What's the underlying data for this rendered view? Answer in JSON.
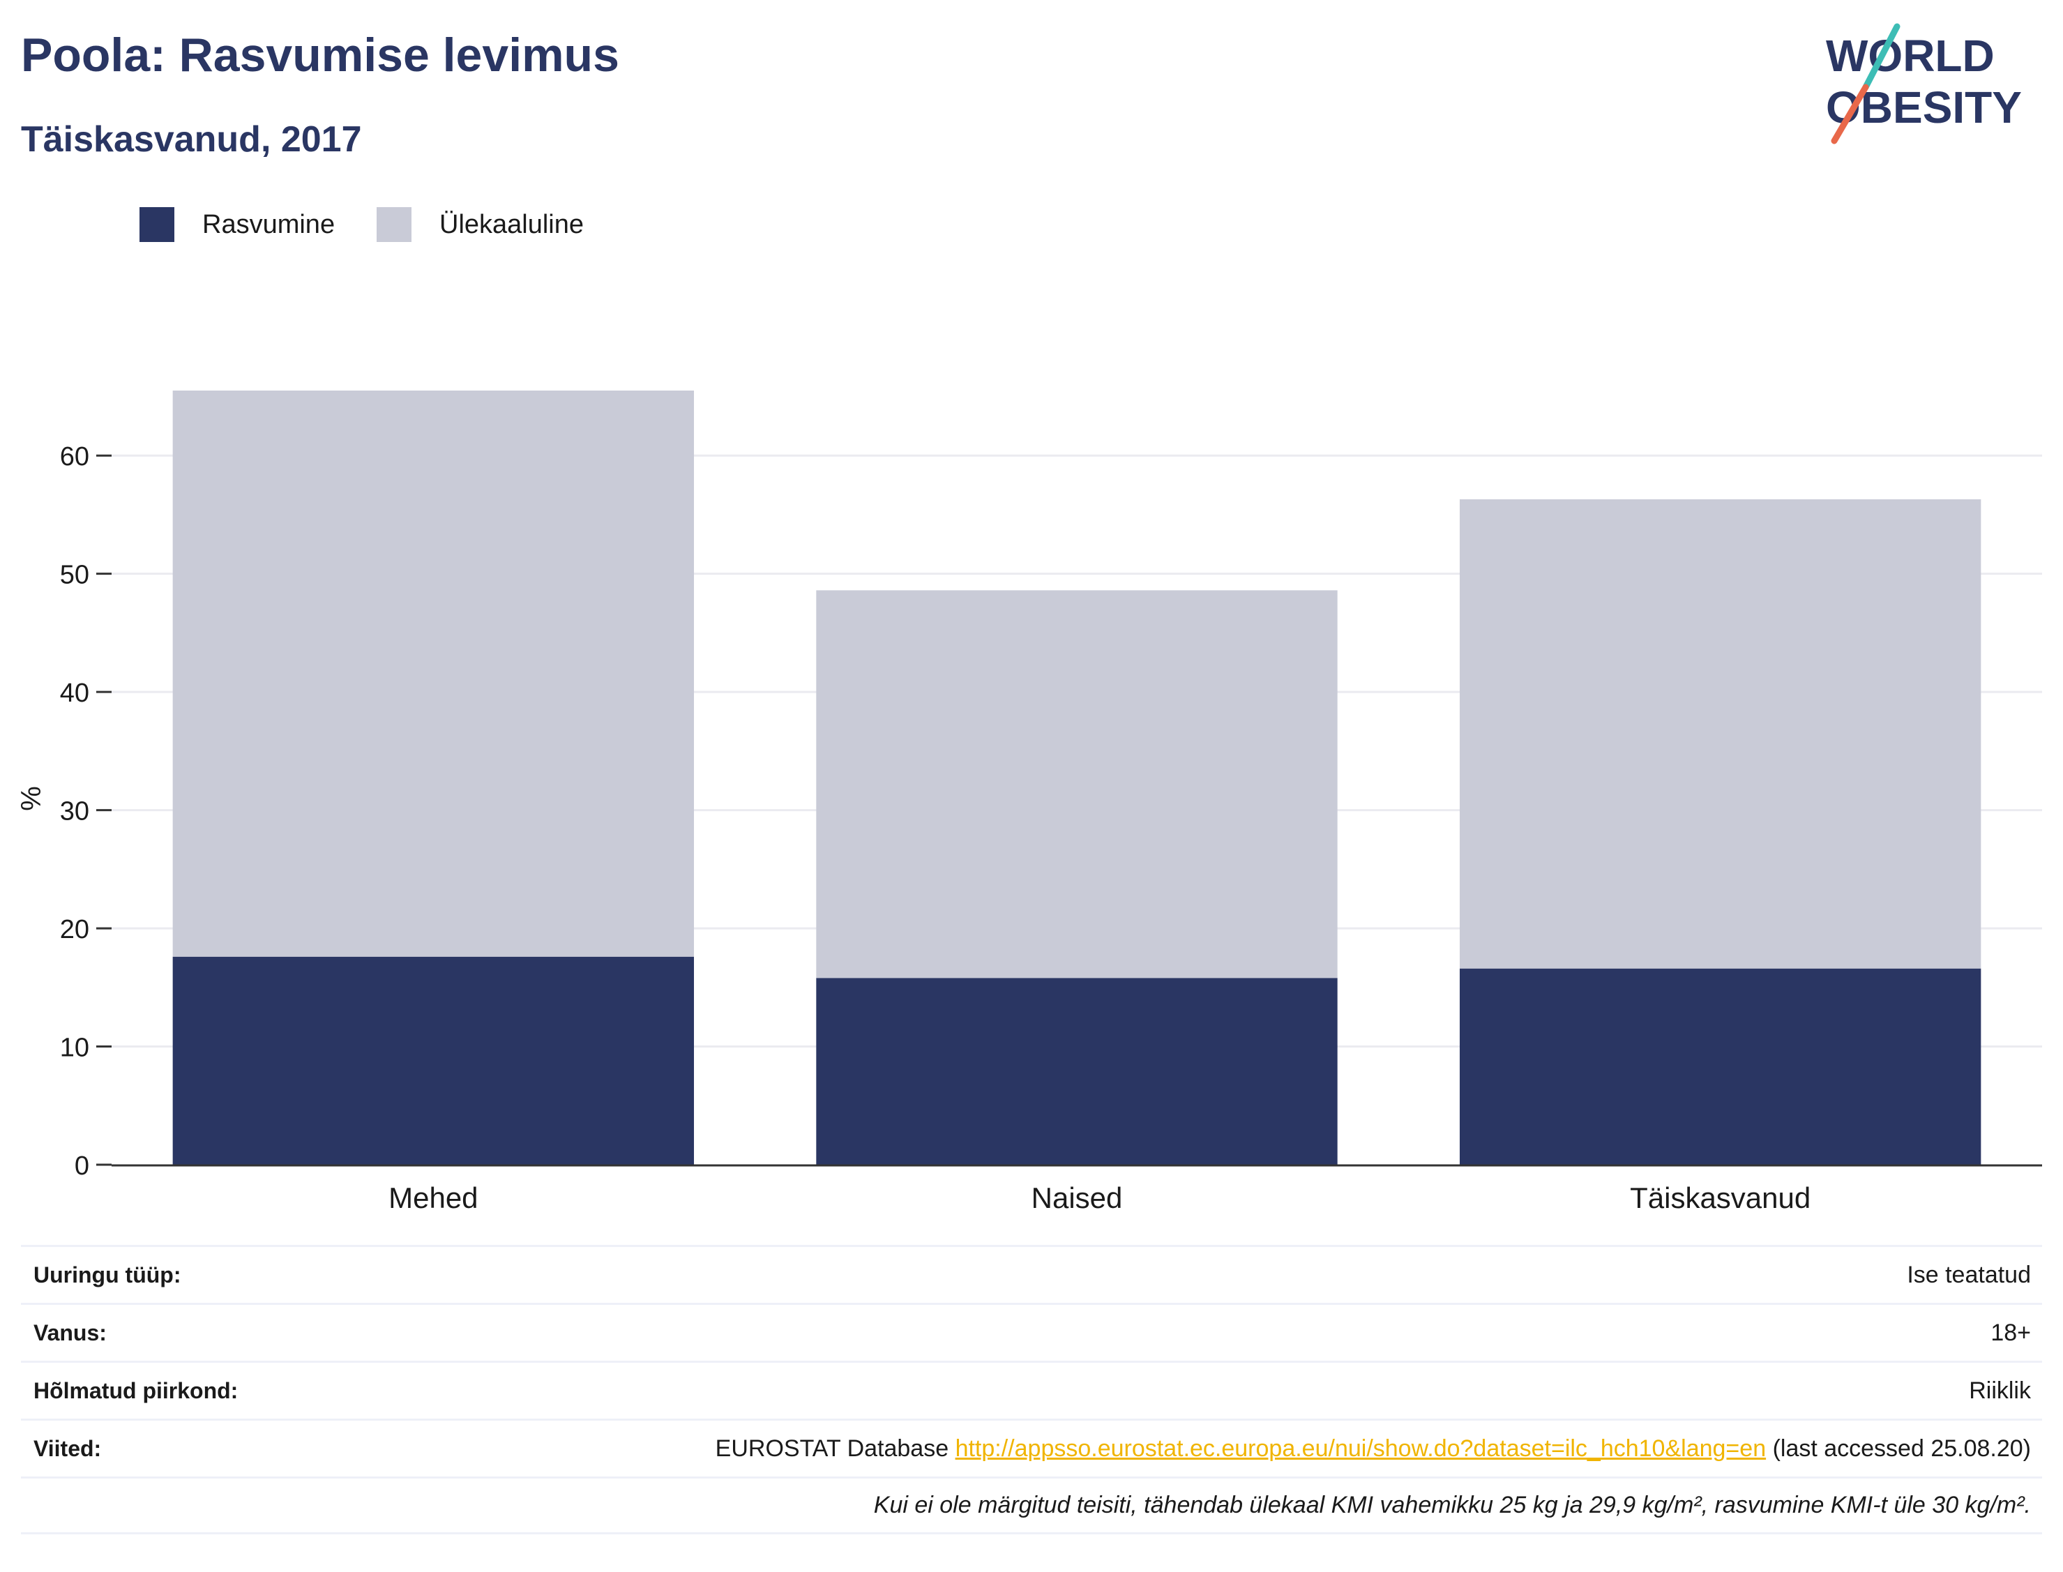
{
  "title": "Poola: Rasvumise levimus",
  "subtitle": "Täiskasvanud, 2017",
  "logo": {
    "line1": "WORLD",
    "line2": "OBESITY"
  },
  "legend": [
    {
      "label": "Rasvumine",
      "color": "#2a3663"
    },
    {
      "label": "Ülekaaluline",
      "color": "#c9cbd7"
    }
  ],
  "chart_data": {
    "type": "bar",
    "stacked": true,
    "categories": [
      "Mehed",
      "Naised",
      "Täiskasvanud"
    ],
    "series": [
      {
        "name": "Rasvumine",
        "values": [
          17.6,
          15.8,
          16.6
        ],
        "color": "#2a3663"
      },
      {
        "name": "Ülekaaluline",
        "values": [
          47.9,
          32.8,
          39.7
        ],
        "color": "#c9cbd7"
      }
    ],
    "ylabel": "%",
    "ylim": [
      0,
      65.5
    ],
    "yticks": [
      0,
      10,
      20,
      30,
      40,
      50,
      60
    ],
    "grid": true
  },
  "info": {
    "survey_label": "Uuringu tüüp:",
    "survey_value": "Ise teatatud",
    "age_label": "Vanus:",
    "age_value": "18+",
    "region_label": "Hõlmatud piirkond:",
    "region_value": "Riiklik",
    "refs_label": "Viited:",
    "refs_prefix": "EUROSTAT Database",
    "refs_link": "http://appsso.eurostat.ec.europa.eu/nui/show.do?dataset=ilc_hch10&lang=en",
    "refs_suffix": "(last accessed 25.08.20)",
    "note": "Kui ei ole märgitud teisiti, tähendab ülekaal KMI vahemikku 25 kg ja 29,9 kg/m², rasvumine KMI-t üle 30 kg/m²."
  }
}
